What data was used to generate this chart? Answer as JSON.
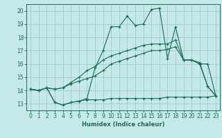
{
  "xlabel": "Humidex (Indice chaleur)",
  "background_color": "#c5e8e8",
  "grid_color": "#a0cccc",
  "line_color": "#1a6b5a",
  "xlim": [
    -0.5,
    23.5
  ],
  "ylim": [
    12.5,
    20.5
  ],
  "xticks": [
    0,
    1,
    2,
    3,
    4,
    5,
    6,
    7,
    8,
    9,
    10,
    11,
    12,
    13,
    14,
    15,
    16,
    17,
    18,
    19,
    20,
    21,
    22,
    23
  ],
  "yticks": [
    13,
    14,
    15,
    16,
    17,
    18,
    19,
    20
  ],
  "lines": [
    [
      14.1,
      14.0,
      14.2,
      13.1,
      12.9,
      13.1,
      13.2,
      13.3,
      13.3,
      13.3,
      13.4,
      13.4,
      13.4,
      13.4,
      13.4,
      13.4,
      13.4,
      13.5,
      13.5,
      13.5,
      13.5,
      13.5,
      13.5,
      13.6
    ],
    [
      14.1,
      14.0,
      14.2,
      14.1,
      14.2,
      14.5,
      14.7,
      14.9,
      15.1,
      15.5,
      16.0,
      16.2,
      16.4,
      16.6,
      16.8,
      17.0,
      17.0,
      17.1,
      17.3,
      16.3,
      16.3,
      16.1,
      14.3,
      13.6
    ],
    [
      14.1,
      14.0,
      14.2,
      14.1,
      14.2,
      14.6,
      15.0,
      15.5,
      15.8,
      16.3,
      16.6,
      16.8,
      17.0,
      17.2,
      17.4,
      17.5,
      17.5,
      17.5,
      17.8,
      16.3,
      16.3,
      16.0,
      16.0,
      13.6
    ],
    [
      14.1,
      14.0,
      14.2,
      13.1,
      12.9,
      13.1,
      13.2,
      13.4,
      15.7,
      17.0,
      18.8,
      18.8,
      19.6,
      18.9,
      19.0,
      20.1,
      20.2,
      16.4,
      18.8,
      16.3,
      16.3,
      16.0,
      14.3,
      13.6
    ]
  ]
}
